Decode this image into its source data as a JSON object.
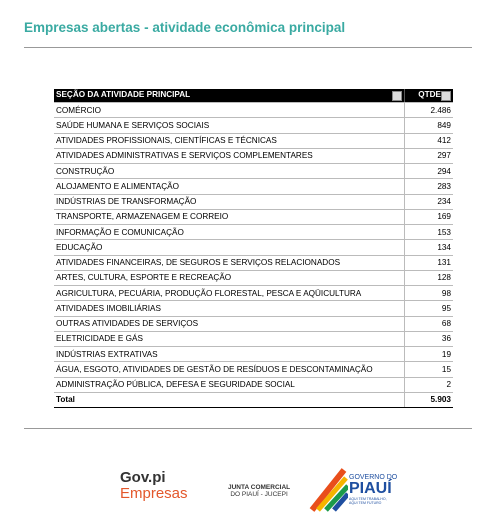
{
  "header": {
    "title": "Empresas abertas - atividade econômica principal"
  },
  "table": {
    "columns": [
      "SEÇÃO DA ATIVIDADE PRINCIPAL",
      "QTDE"
    ],
    "rows": [
      [
        "COMÉRCIO",
        "2.486"
      ],
      [
        "SAÚDE HUMANA E SERVIÇOS SOCIAIS",
        "849"
      ],
      [
        "ATIVIDADES PROFISSIONAIS, CIENTÍFICAS E TÉCNICAS",
        "412"
      ],
      [
        "ATIVIDADES ADMINISTRATIVAS E SERVIÇOS COMPLEMENTARES",
        "297"
      ],
      [
        "CONSTRUÇÃO",
        "294"
      ],
      [
        "ALOJAMENTO E ALIMENTAÇÃO",
        "283"
      ],
      [
        "INDÚSTRIAS DE TRANSFORMAÇÃO",
        "234"
      ],
      [
        "TRANSPORTE, ARMAZENAGEM E CORREIO",
        "169"
      ],
      [
        "INFORMAÇÃO E COMUNICAÇÃO",
        "153"
      ],
      [
        "EDUCAÇÃO",
        "134"
      ],
      [
        "ATIVIDADES FINANCEIRAS, DE SEGUROS E SERVIÇOS RELACIONADOS",
        "131"
      ],
      [
        "ARTES, CULTURA, ESPORTE E RECREAÇÃO",
        "128"
      ],
      [
        "AGRICULTURA, PECUÁRIA, PRODUÇÃO FLORESTAL, PESCA E AQÜICULTURA",
        "98"
      ],
      [
        "ATIVIDADES IMOBILIÁRIAS",
        "95"
      ],
      [
        "OUTRAS ATIVIDADES DE SERVIÇOS",
        "68"
      ],
      [
        "ELETRICIDADE E GÁS",
        "36"
      ],
      [
        "INDÚSTRIAS EXTRATIVAS",
        "19"
      ],
      [
        "ÁGUA, ESGOTO, ATIVIDADES DE GESTÃO DE RESÍDUOS E DESCONTAMINAÇÃO",
        "15"
      ],
      [
        "ADMINISTRAÇÃO PÚBLICA, DEFESA E SEGURIDADE SOCIAL",
        "2"
      ]
    ],
    "total": [
      "Total",
      "5.903"
    ]
  },
  "footer": {
    "govpi": {
      "line1": "Gov.pi",
      "line2": "Empresas"
    },
    "jucepi": {
      "line1": "JUNTA COMERCIAL",
      "line2": "DO PIAUÍ - JUCEPI"
    },
    "governo": {
      "line1": "GOVERNO DO",
      "line2": "PIAUÍ",
      "line3": "AQUI TEM TRABALHO, AQUI TEM FUTURO"
    }
  }
}
